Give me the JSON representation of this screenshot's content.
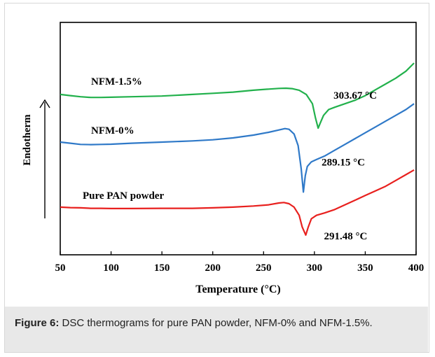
{
  "chart_data": {
    "type": "line",
    "title": "",
    "xlabel": "Temperature (°C)",
    "ylabel": "Endotherm",
    "xlim": [
      50,
      400
    ],
    "xticks": [
      50,
      100,
      150,
      200,
      250,
      300,
      350,
      400
    ],
    "xtick_labels": [
      "50",
      "100",
      "150",
      "200",
      "250",
      "300",
      "350",
      "400"
    ],
    "grid": false,
    "legend": "none",
    "series": [
      {
        "name": "NFM-1.5%",
        "color": "#22b14c",
        "peak_label": "303.67 °C",
        "x": [
          50,
          60,
          70,
          80,
          90,
          100,
          120,
          150,
          180,
          200,
          220,
          240,
          255,
          265,
          272,
          278,
          285,
          292,
          298,
          301,
          303.67,
          306,
          309,
          314,
          320,
          330,
          340,
          350,
          360,
          370,
          380,
          390,
          398
        ],
        "y": [
          0.69,
          0.685,
          0.68,
          0.677,
          0.677,
          0.678,
          0.68,
          0.683,
          0.69,
          0.695,
          0.7,
          0.708,
          0.713,
          0.716,
          0.717,
          0.715,
          0.708,
          0.69,
          0.65,
          0.59,
          0.545,
          0.57,
          0.6,
          0.625,
          0.635,
          0.65,
          0.665,
          0.685,
          0.71,
          0.735,
          0.76,
          0.79,
          0.825
        ]
      },
      {
        "name": "NFM-0%",
        "color": "#2f79c8",
        "peak_label": "289.15 °C",
        "x": [
          50,
          60,
          70,
          80,
          90,
          100,
          120,
          150,
          180,
          200,
          220,
          240,
          255,
          265,
          271,
          275,
          280,
          284,
          287,
          289.15,
          291,
          293,
          297,
          302,
          310,
          320,
          330,
          340,
          350,
          360,
          370,
          380,
          390,
          398
        ],
        "y": [
          0.485,
          0.48,
          0.475,
          0.474,
          0.475,
          0.476,
          0.48,
          0.485,
          0.49,
          0.495,
          0.503,
          0.515,
          0.527,
          0.537,
          0.543,
          0.54,
          0.52,
          0.47,
          0.37,
          0.27,
          0.34,
          0.38,
          0.4,
          0.41,
          0.425,
          0.45,
          0.475,
          0.5,
          0.525,
          0.55,
          0.575,
          0.6,
          0.625,
          0.65
        ]
      },
      {
        "name": "Pure PAN powder",
        "color": "#e8201e",
        "peak_label": "291.48 °C",
        "x": [
          50,
          60,
          70,
          80,
          90,
          100,
          120,
          150,
          180,
          200,
          220,
          240,
          255,
          265,
          270,
          275,
          280,
          285,
          288,
          291.48,
          294,
          297,
          302,
          310,
          320,
          330,
          340,
          350,
          360,
          370,
          380,
          390,
          398
        ],
        "y": [
          0.205,
          0.203,
          0.202,
          0.2,
          0.2,
          0.199,
          0.199,
          0.2,
          0.2,
          0.202,
          0.205,
          0.21,
          0.215,
          0.223,
          0.225,
          0.22,
          0.205,
          0.17,
          0.12,
          0.085,
          0.12,
          0.155,
          0.17,
          0.18,
          0.195,
          0.215,
          0.235,
          0.255,
          0.275,
          0.295,
          0.32,
          0.345,
          0.365
        ]
      }
    ]
  },
  "caption": {
    "label": "Figure 6:",
    "text": " DSC thermograms for pure PAN powder, NFM-0% and NFM-1.5%."
  }
}
